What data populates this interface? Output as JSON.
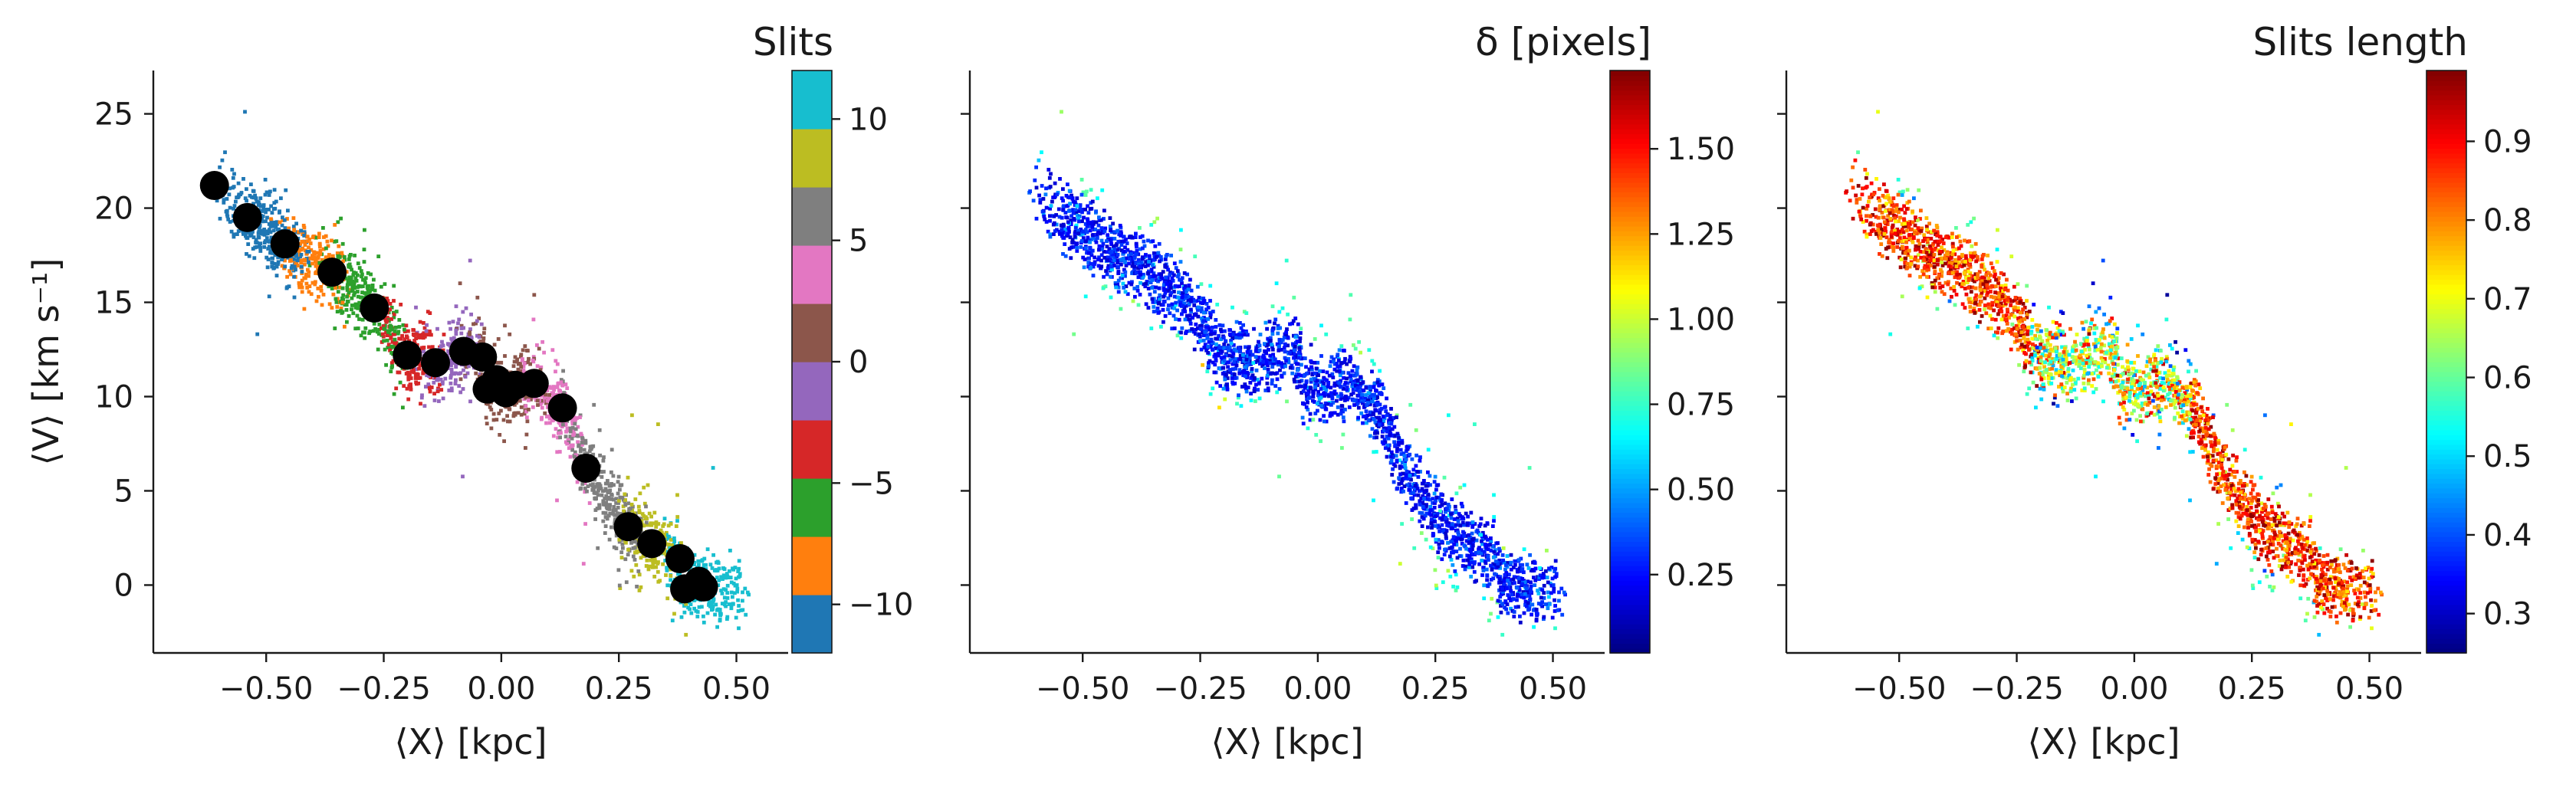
{
  "chart_data": [
    {
      "type": "scatter",
      "panel": "slits",
      "xlabel": "⟨X⟩ [kpc]",
      "ylabel": "⟨V⟩ [km s⁻¹]",
      "xlim": [
        -0.74,
        0.61
      ],
      "ylim": [
        -3.6,
        27.3
      ],
      "xticks": [
        "−0.50",
        "−0.25",
        "0.00",
        "0.25",
        "0.50"
      ],
      "xtick_values": [
        -0.5,
        -0.25,
        0.0,
        0.25,
        0.5
      ],
      "yticks": [
        "0",
        "5",
        "10",
        "15",
        "20",
        "25"
      ],
      "ytick_values": [
        0,
        5,
        10,
        15,
        20,
        25
      ],
      "colorbar": {
        "title": "Slits",
        "range": [
          -12,
          12
        ],
        "ticks": [
          "−10",
          "−5",
          "0",
          "5",
          "10"
        ],
        "tick_values": [
          -10,
          -5,
          0,
          5,
          10
        ],
        "colors": [
          "#1f77b4",
          "#ff7f0e",
          "#2ca02c",
          "#d62728",
          "#9467bd",
          "#8c564b",
          "#e377c2",
          "#7f7f7f",
          "#bcbd22",
          "#17becf"
        ]
      },
      "mean_points": {
        "x": [
          -0.61,
          -0.54,
          -0.46,
          -0.36,
          -0.27,
          -0.2,
          -0.14,
          -0.08,
          -0.04,
          -0.03,
          -0.01,
          0.01,
          0.03,
          0.07,
          0.13,
          0.18,
          0.27,
          0.32,
          0.38,
          0.39,
          0.42,
          0.43
        ],
        "y": [
          21.2,
          19.5,
          18.1,
          16.6,
          14.7,
          12.2,
          11.8,
          12.4,
          12.1,
          10.4,
          10.9,
          10.2,
          10.6,
          10.7,
          9.4,
          6.2,
          3.1,
          2.2,
          1.4,
          -0.2,
          0.2,
          -0.1
        ],
        "color": "#000000"
      },
      "scatter_color_by": "slit index (−12 to 12)"
    },
    {
      "type": "scatter",
      "panel": "delta",
      "xlabel": "⟨X⟩ [kpc]",
      "xlim": [
        -0.74,
        0.61
      ],
      "ylim": [
        -3.6,
        27.3
      ],
      "xticks": [
        "−0.50",
        "−0.25",
        "0.00",
        "0.25",
        "0.50"
      ],
      "xtick_values": [
        -0.5,
        -0.25,
        0.0,
        0.25,
        0.5
      ],
      "colorbar": {
        "title": "δ [pixels]",
        "colormap": "jet",
        "range": [
          0.02,
          1.73
        ],
        "ticks": [
          "0.25",
          "0.50",
          "0.75",
          "1.00",
          "1.25",
          "1.50"
        ],
        "tick_values": [
          0.25,
          0.5,
          0.75,
          1.0,
          1.25,
          1.5
        ]
      }
    },
    {
      "type": "scatter",
      "panel": "slits_length",
      "xlabel": "⟨X⟩ [kpc]",
      "xlim": [
        -0.74,
        0.61
      ],
      "ylim": [
        -3.6,
        27.3
      ],
      "xticks": [
        "−0.50",
        "−0.25",
        "0.00",
        "0.25",
        "0.50"
      ],
      "xtick_values": [
        -0.5,
        -0.25,
        0.0,
        0.25,
        0.5
      ],
      "colorbar": {
        "title": "Slits length",
        "colormap": "jet",
        "range": [
          0.25,
          0.99
        ],
        "ticks": [
          "0.3",
          "0.4",
          "0.5",
          "0.6",
          "0.7",
          "0.8",
          "0.9"
        ],
        "tick_values": [
          0.3,
          0.4,
          0.5,
          0.6,
          0.7,
          0.8,
          0.9
        ]
      }
    }
  ]
}
